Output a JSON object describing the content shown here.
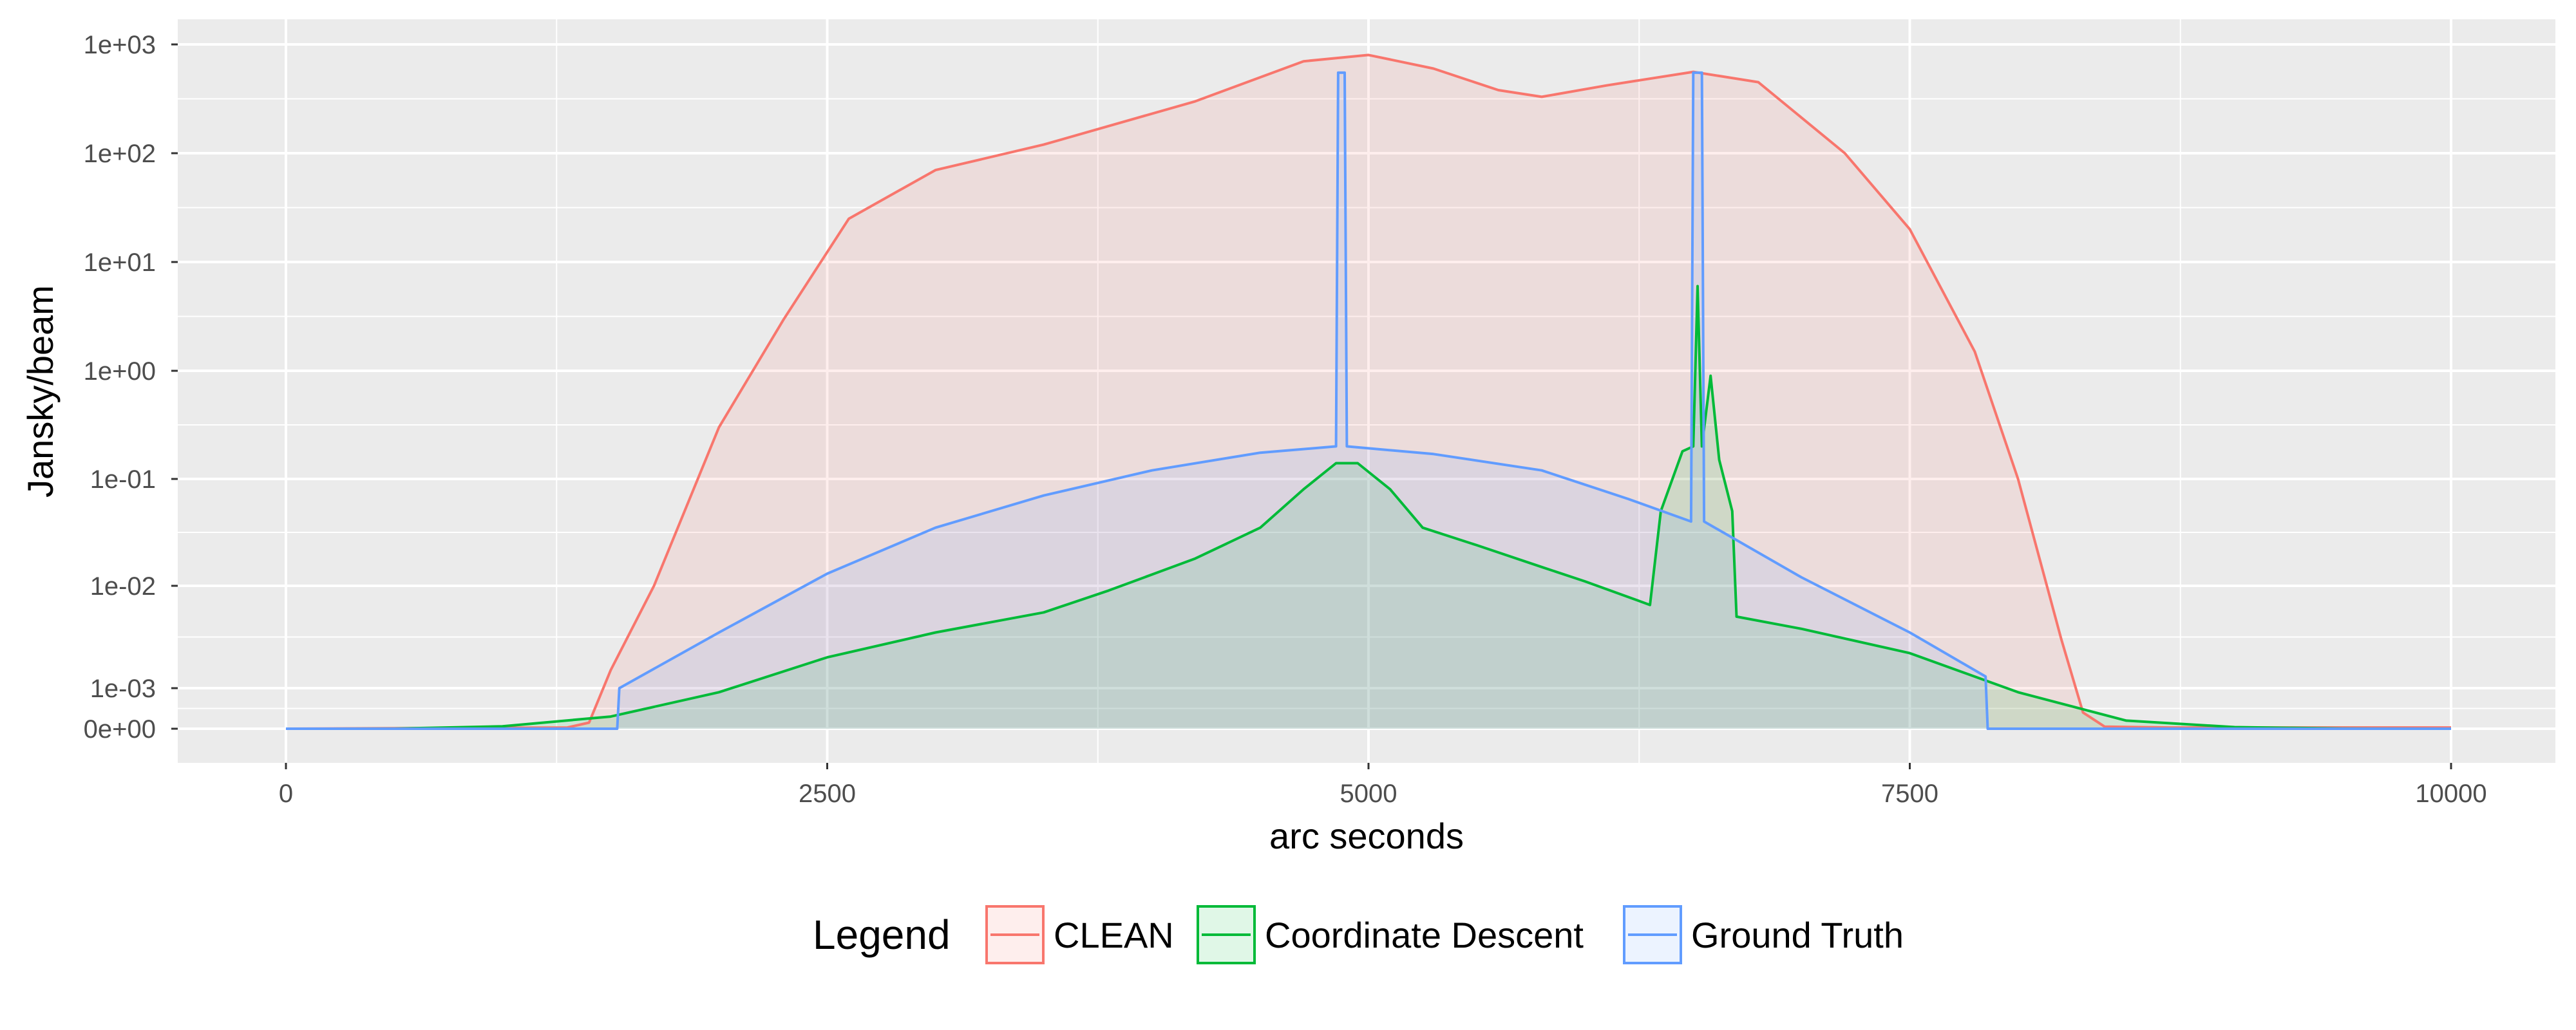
{
  "chart_data": {
    "type": "area",
    "xlabel": "arc seconds",
    "ylabel": "Jansky/beam",
    "x_ticks": [
      0,
      2500,
      5000,
      7500,
      10000
    ],
    "x_tick_labels": [
      "0",
      "2500",
      "5000",
      "7500",
      "10000"
    ],
    "xlim": [
      -500,
      10500
    ],
    "y_scale": "pseudo-log",
    "y_ticks": [
      0,
      0.001,
      0.01,
      0.1,
      1,
      10,
      100,
      1000
    ],
    "y_tick_labels": [
      "0e+00",
      "1e-03",
      "1e-02",
      "1e-01",
      "1e+00",
      "1e+01",
      "1e+02",
      "1e+03"
    ],
    "grid": true,
    "background": "#ebebeb",
    "legend": {
      "title": "Legend",
      "position": "bottom",
      "entries": [
        "CLEAN",
        "Coordinate Descent",
        "Ground Truth"
      ]
    },
    "series": [
      {
        "name": "CLEAN",
        "color": "#f8766d",
        "points": [
          [
            0,
            0
          ],
          [
            1300,
            3e-05
          ],
          [
            1400,
            0.00015
          ],
          [
            1500,
            0.0015
          ],
          [
            1700,
            0.01
          ],
          [
            2000,
            0.3
          ],
          [
            2300,
            3
          ],
          [
            2600,
            25
          ],
          [
            3000,
            70
          ],
          [
            3500,
            120
          ],
          [
            4200,
            300
          ],
          [
            4700,
            700
          ],
          [
            5000,
            800
          ],
          [
            5300,
            600
          ],
          [
            5600,
            380
          ],
          [
            5800,
            330
          ],
          [
            6100,
            420
          ],
          [
            6500,
            560
          ],
          [
            6800,
            450
          ],
          [
            7200,
            100
          ],
          [
            7500,
            20
          ],
          [
            7800,
            1.5
          ],
          [
            8000,
            0.1
          ],
          [
            8200,
            0.003
          ],
          [
            8300,
            0.0004
          ],
          [
            8400,
            5e-05
          ],
          [
            8700,
            3e-05
          ],
          [
            10000,
            3e-05
          ]
        ]
      },
      {
        "name": "Coordinate Descent",
        "color": "#00ba38",
        "points": [
          [
            0,
            0
          ],
          [
            500,
            2e-06
          ],
          [
            1000,
            6e-05
          ],
          [
            1500,
            0.0003
          ],
          [
            2000,
            0.0009
          ],
          [
            2500,
            0.002
          ],
          [
            3000,
            0.0035
          ],
          [
            3500,
            0.0055
          ],
          [
            3800,
            0.009
          ],
          [
            4200,
            0.018
          ],
          [
            4500,
            0.035
          ],
          [
            4700,
            0.08
          ],
          [
            4850,
            0.14
          ],
          [
            4950,
            0.14
          ],
          [
            5100,
            0.08
          ],
          [
            5250,
            0.035
          ],
          [
            5500,
            0.024
          ],
          [
            5800,
            0.015
          ],
          [
            6000,
            0.011
          ],
          [
            6300,
            0.0065
          ],
          [
            6350,
            0.05
          ],
          [
            6450,
            0.18
          ],
          [
            6500,
            0.2
          ],
          [
            6520,
            6
          ],
          [
            6540,
            0.2
          ],
          [
            6580,
            0.9
          ],
          [
            6620,
            0.15
          ],
          [
            6680,
            0.05
          ],
          [
            6700,
            0.005
          ],
          [
            7000,
            0.0038
          ],
          [
            7500,
            0.0022
          ],
          [
            8000,
            0.0009
          ],
          [
            8500,
            0.0002
          ],
          [
            9000,
            4e-05
          ],
          [
            9500,
            3e-06
          ],
          [
            10000,
            0
          ]
        ]
      },
      {
        "name": "Ground Truth",
        "color": "#619cff",
        "points": [
          [
            0,
            0
          ],
          [
            1530,
            0
          ],
          [
            1540,
            0.001
          ],
          [
            2000,
            0.0035
          ],
          [
            2500,
            0.013
          ],
          [
            3000,
            0.035
          ],
          [
            3500,
            0.07
          ],
          [
            4000,
            0.12
          ],
          [
            4500,
            0.175
          ],
          [
            4850,
            0.2
          ],
          [
            4860,
            550
          ],
          [
            4890,
            550
          ],
          [
            4900,
            0.2
          ],
          [
            5300,
            0.17
          ],
          [
            5800,
            0.12
          ],
          [
            6200,
            0.065
          ],
          [
            6490,
            0.04
          ],
          [
            6500,
            550
          ],
          [
            6540,
            550
          ],
          [
            6550,
            0.04
          ],
          [
            7000,
            0.012
          ],
          [
            7500,
            0.0035
          ],
          [
            7850,
            0.0013
          ],
          [
            7860,
            0
          ],
          [
            10000,
            0
          ]
        ]
      }
    ]
  }
}
